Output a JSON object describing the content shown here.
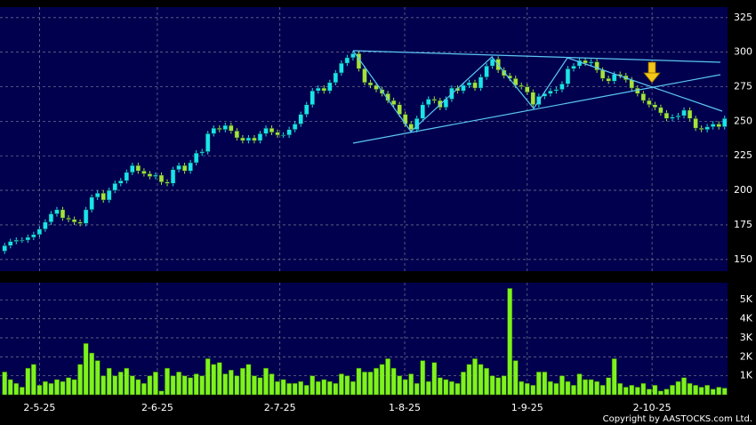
{
  "chart_data": [
    {
      "type": "candlestick",
      "open": [
        156,
        160,
        163,
        164,
        164,
        166,
        168,
        172,
        177,
        183,
        186,
        180,
        179,
        177,
        176,
        186,
        195,
        198,
        193,
        200,
        205,
        207,
        213,
        218,
        214,
        212,
        210,
        211,
        206,
        205,
        215,
        218,
        214,
        220,
        227,
        228,
        241,
        245,
        244,
        247,
        243,
        238,
        236,
        238,
        236,
        241,
        245,
        242,
        240,
        240,
        244,
        248,
        255,
        262,
        272,
        274,
        272,
        278,
        285,
        292,
        296,
        299,
        288,
        278,
        276,
        273,
        270,
        265,
        262,
        255,
        248,
        244,
        252,
        262,
        266,
        265,
        260,
        266,
        274,
        272,
        276,
        278,
        274,
        282,
        290,
        295,
        287,
        283,
        281,
        276,
        275,
        271,
        262,
        268,
        270,
        272,
        273,
        277,
        288,
        290,
        294,
        292,
        293,
        287,
        281,
        279,
        284,
        283,
        280,
        274,
        270,
        265,
        262,
        260,
        256,
        252,
        253,
        254,
        258,
        252,
        245,
        244,
        246,
        248,
        246
      ],
      "high": [
        162,
        165,
        166,
        166,
        168,
        170,
        174,
        179,
        185,
        188,
        188,
        182,
        181,
        179,
        188,
        197,
        200,
        200,
        202,
        207,
        209,
        215,
        220,
        220,
        216,
        214,
        213,
        213,
        208,
        217,
        220,
        220,
        222,
        229,
        230,
        243,
        247,
        247,
        249,
        249,
        245,
        240,
        240,
        240,
        243,
        247,
        247,
        244,
        242,
        246,
        250,
        257,
        264,
        274,
        276,
        276,
        280,
        287,
        294,
        298,
        301,
        301,
        290,
        280,
        278,
        275,
        272,
        267,
        264,
        257,
        250,
        254,
        264,
        268,
        268,
        267,
        268,
        276,
        276,
        278,
        280,
        280,
        284,
        292,
        297,
        297,
        289,
        285,
        283,
        278,
        277,
        273,
        270,
        272,
        274,
        275,
        279,
        290,
        292,
        296,
        296,
        295,
        295,
        289,
        283,
        286,
        286,
        285,
        282,
        276,
        272,
        267,
        264,
        262,
        258,
        255,
        256,
        260,
        260,
        254,
        247,
        248,
        250,
        250,
        254
      ],
      "low": [
        154,
        158,
        161,
        162,
        162,
        164,
        166,
        170,
        175,
        181,
        178,
        177,
        175,
        174,
        174,
        184,
        193,
        191,
        191,
        198,
        203,
        205,
        211,
        212,
        210,
        208,
        208,
        204,
        203,
        203,
        213,
        212,
        212,
        218,
        225,
        226,
        239,
        242,
        242,
        241,
        236,
        234,
        234,
        234,
        234,
        239,
        240,
        238,
        238,
        238,
        242,
        246,
        253,
        260,
        270,
        270,
        270,
        276,
        283,
        290,
        294,
        286,
        276,
        274,
        271,
        268,
        263,
        260,
        253,
        246,
        242,
        242,
        250,
        260,
        263,
        258,
        258,
        264,
        270,
        270,
        274,
        272,
        272,
        280,
        288,
        285,
        281,
        279,
        274,
        273,
        269,
        260,
        260,
        266,
        268,
        270,
        271,
        275,
        286,
        288,
        290,
        290,
        285,
        279,
        277,
        277,
        281,
        278,
        272,
        268,
        263,
        260,
        258,
        254,
        250,
        250,
        251,
        252,
        250,
        243,
        242,
        242,
        244,
        244,
        244
      ],
      "close": [
        160,
        163,
        164,
        164,
        166,
        168,
        172,
        177,
        183,
        186,
        180,
        179,
        177,
        176,
        186,
        195,
        198,
        193,
        200,
        205,
        207,
        213,
        218,
        214,
        212,
        210,
        211,
        206,
        205,
        215,
        218,
        214,
        220,
        227,
        228,
        241,
        245,
        244,
        247,
        243,
        238,
        236,
        238,
        236,
        241,
        245,
        242,
        240,
        240,
        244,
        248,
        255,
        262,
        272,
        274,
        272,
        278,
        285,
        292,
        296,
        299,
        288,
        278,
        276,
        273,
        270,
        265,
        262,
        255,
        248,
        244,
        252,
        262,
        266,
        265,
        260,
        266,
        274,
        272,
        276,
        278,
        274,
        282,
        290,
        295,
        287,
        283,
        281,
        276,
        275,
        271,
        262,
        268,
        270,
        272,
        273,
        277,
        288,
        290,
        294,
        292,
        293,
        287,
        281,
        279,
        284,
        283,
        280,
        274,
        270,
        265,
        262,
        260,
        256,
        252,
        253,
        254,
        258,
        252,
        245,
        244,
        246,
        248,
        246,
        252
      ],
      "up_color": "#19e3ee",
      "down_color": "#a6e23a",
      "ylim": [
        141.5,
        332.6
      ],
      "yticks": [
        150,
        175,
        200,
        225,
        250,
        275,
        300,
        325
      ],
      "grid": true
    },
    {
      "type": "bar",
      "values": [
        1200,
        800,
        600,
        400,
        1400,
        1600,
        500,
        700,
        600,
        800,
        700,
        900,
        800,
        1600,
        2700,
        2200,
        1800,
        1000,
        1400,
        1000,
        1200,
        1400,
        1000,
        800,
        600,
        1000,
        1200,
        200,
        1400,
        1000,
        1200,
        1000,
        900,
        1100,
        1000,
        1900,
        1600,
        1700,
        1100,
        1300,
        1000,
        1400,
        1600,
        1000,
        900,
        1400,
        1100,
        700,
        800,
        600,
        600,
        700,
        500,
        1000,
        700,
        800,
        700,
        600,
        1100,
        1000,
        700,
        1400,
        1200,
        1200,
        1400,
        1600,
        1900,
        1400,
        1000,
        800,
        1100,
        600,
        1800,
        700,
        1700,
        900,
        800,
        700,
        600,
        1200,
        1600,
        1900,
        1600,
        1400,
        1000,
        900,
        1000,
        5600,
        1800,
        700,
        600,
        500,
        1200,
        1200,
        700,
        600,
        1000,
        700,
        500,
        1100,
        800,
        800,
        700,
        500,
        900,
        1900,
        600,
        400,
        500,
        400,
        600,
        300,
        500,
        200,
        300,
        500,
        700,
        900,
        600,
        500,
        400,
        500,
        300,
        400,
        350
      ],
      "color": "#7ef21e",
      "ylim": [
        0,
        5900
      ],
      "yticks": [
        {
          "value": 1000,
          "label": "1K"
        },
        {
          "value": 2000,
          "label": "2K"
        },
        {
          "value": 3000,
          "label": "3K"
        },
        {
          "value": 4000,
          "label": "4K"
        },
        {
          "value": 5000,
          "label": "5K"
        }
      ],
      "xlim": [
        -0.8,
        124.5
      ],
      "xticks": [
        {
          "value": 6,
          "label": "2-5-25"
        },
        {
          "value": 26.3,
          "label": "2-6-25"
        },
        {
          "value": 47.4,
          "label": "2-7-25"
        },
        {
          "value": 68.9,
          "label": "1-8-25"
        },
        {
          "value": 90,
          "label": "1-9-25"
        },
        {
          "value": 111.5,
          "label": "2-10-25"
        }
      ],
      "grid": true
    }
  ],
  "footer": "Copyright by AASTOCKS.com Ltd."
}
